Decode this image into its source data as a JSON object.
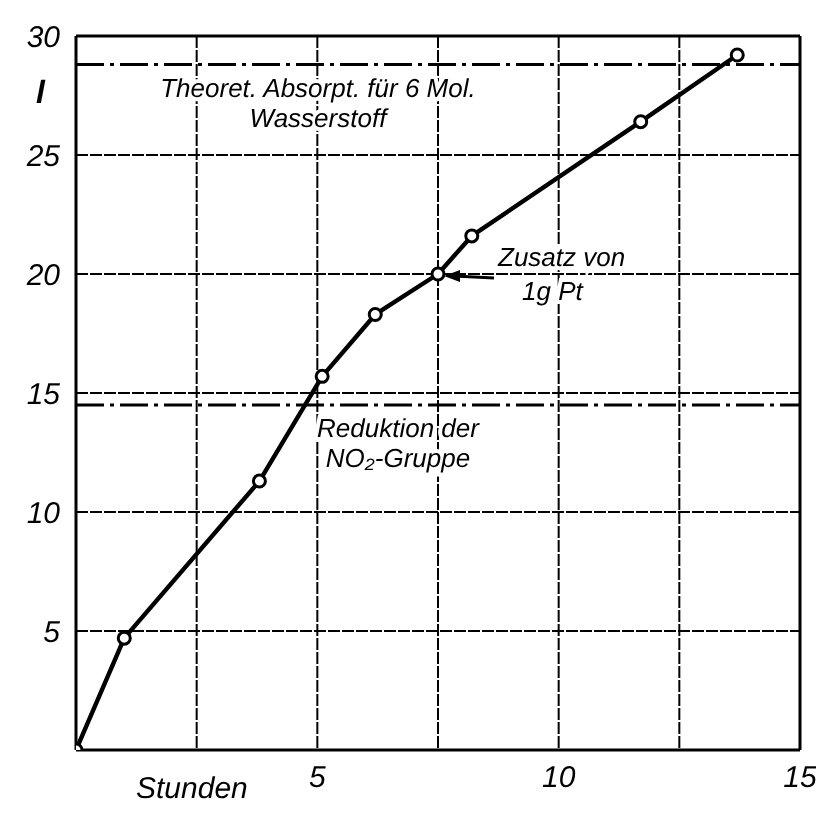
{
  "chart_data": {
    "type": "line",
    "xlabel": "Stunden",
    "ylabel": "l",
    "x": [
      0,
      1,
      3.8,
      5.1,
      6.2,
      7.5,
      8.2,
      11.7,
      13.7
    ],
    "series": [
      {
        "color": "#000000",
        "values": [
          0,
          4.7,
          11.3,
          15.7,
          18.3,
          20,
          21.6,
          26.4,
          29.2
        ]
      }
    ],
    "xlim": [
      0,
      15
    ],
    "xticks": [
      {
        "value": 2.5,
        "label": null
      },
      5,
      {
        "value": 7.5,
        "label": null
      },
      10,
      {
        "value": 12.5,
        "label": null
      },
      15
    ],
    "ylim": [
      0,
      30
    ],
    "yticks": [
      5,
      10,
      15,
      20,
      25,
      30
    ],
    "grid": true,
    "marker": "circle",
    "line_style": "solid",
    "ref_lines": [
      {
        "axis": "y",
        "value": 28.8,
        "label": "Theoret. Absorpt. für 6 Mol. Wasserstoff",
        "color": "#000000",
        "line_style": "dashdot"
      },
      {
        "axis": "y",
        "value": 14.5,
        "label": "Reduktion der NO₂-Gruppe",
        "color": "#000000",
        "line_style": "dashdot"
      }
    ],
    "annotations": [
      {
        "text": "Zusatz von 1g Pt",
        "x": 7.5,
        "y": 20
      }
    ]
  }
}
